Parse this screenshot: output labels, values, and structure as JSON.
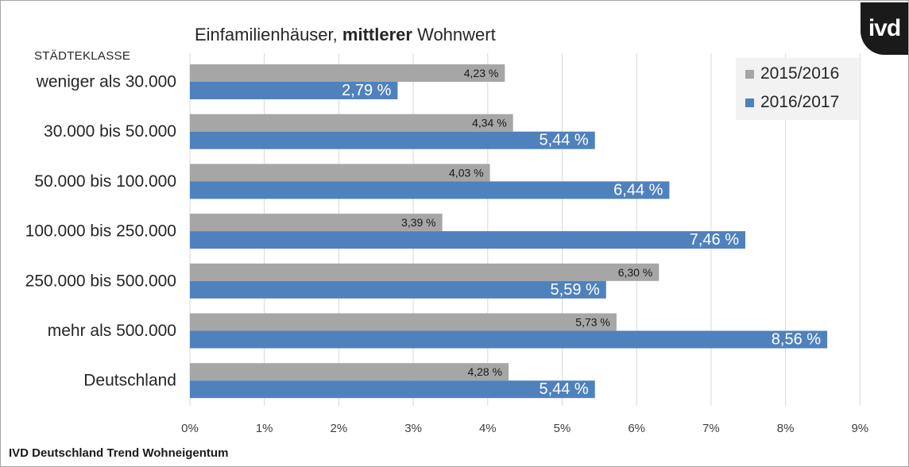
{
  "header": {
    "title_part1": "Einfamilienhäuser,",
    "title_bold": "mittlerer",
    "title_part2": "Wohnwert",
    "category_caption": "STÄDTEKLASSE",
    "logo_text": "ivd"
  },
  "footer": {
    "source": "IVD Deutschland Trend Wohneigentum"
  },
  "legend": {
    "position": "top-right",
    "items": [
      {
        "label": "2015/2016",
        "color": "#a6a6a6"
      },
      {
        "label": "2016/2017",
        "color": "#4f81bd"
      }
    ]
  },
  "chart_data": {
    "type": "bar",
    "orientation": "horizontal",
    "title": "Einfamilienhäuser, mittlerer Wohnwert",
    "ylabel": "STÄDTEKLASSE",
    "categories": [
      "weniger als 30.000",
      "30.000 bis 50.000",
      "50.000 bis 100.000",
      "100.000 bis 250.000",
      "250.000 bis 500.000",
      "mehr als 500.000",
      "Deutschland"
    ],
    "series": [
      {
        "name": "2015/2016",
        "color": "#a6a6a6",
        "values": [
          4.23,
          4.34,
          4.03,
          3.39,
          6.3,
          5.73,
          4.28
        ],
        "labels": [
          "4,23 %",
          "4,34 %",
          "4,03 %",
          "3,39 %",
          "6,30 %",
          "5,73 %",
          "4,28 %"
        ]
      },
      {
        "name": "2016/2017",
        "color": "#4f81bd",
        "values": [
          2.79,
          5.44,
          6.44,
          7.46,
          5.59,
          8.56,
          5.44
        ],
        "labels": [
          "2,79 %",
          "5,44 %",
          "6,44 %",
          "7,46 %",
          "5,59 %",
          "8,56 %",
          "5,44 %"
        ]
      }
    ],
    "xlim": [
      0,
      9
    ],
    "xticks": [
      "0%",
      "1%",
      "2%",
      "3%",
      "4%",
      "5%",
      "6%",
      "7%",
      "8%",
      "9%"
    ],
    "grid": true
  }
}
